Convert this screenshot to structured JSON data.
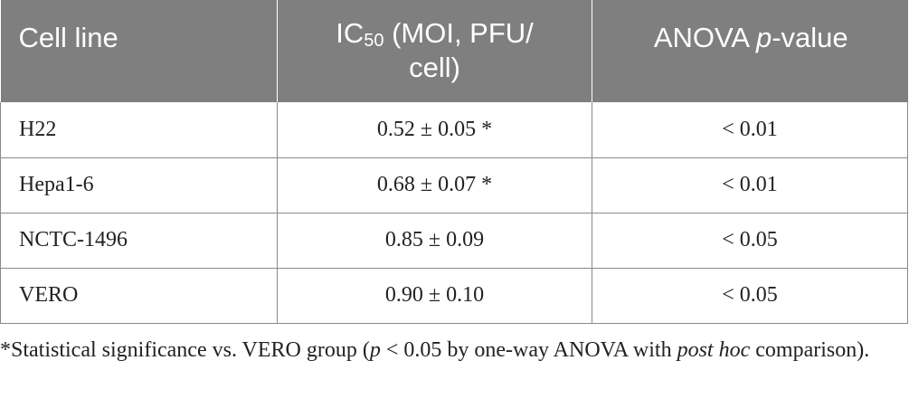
{
  "table": {
    "headers": {
      "cell_line": "Cell line",
      "ic50_prefix": "IC",
      "ic50_sub": "50",
      "ic50_rest": " (MOI, PFU/ cell)",
      "anova_prefix": "ANOVA ",
      "anova_p": "p",
      "anova_rest": "-value"
    },
    "rows": [
      {
        "cell_line": "H22",
        "ic50": "0.52 ± 0.05 *",
        "p_value": "< 0.01"
      },
      {
        "cell_line": "Hepa1-6",
        "ic50": "0.68 ± 0.07 *",
        "p_value": "< 0.01"
      },
      {
        "cell_line": "NCTC-1496",
        "ic50": "0.85 ± 0.09",
        "p_value": "< 0.05"
      },
      {
        "cell_line": "VERO",
        "ic50": "0.90 ± 0.10",
        "p_value": "< 0.05"
      }
    ]
  },
  "footnote": {
    "part1": "*Statistical significance vs. VERO group (",
    "p": "p",
    "part2": " < 0.05 by one-way ANOVA with ",
    "post_hoc": "post hoc",
    "part3": " comparison)."
  },
  "colors": {
    "header_bg": "#7f7f7f",
    "header_text": "#ffffff",
    "rule": "#8a8a8a",
    "body_text": "#222222"
  }
}
